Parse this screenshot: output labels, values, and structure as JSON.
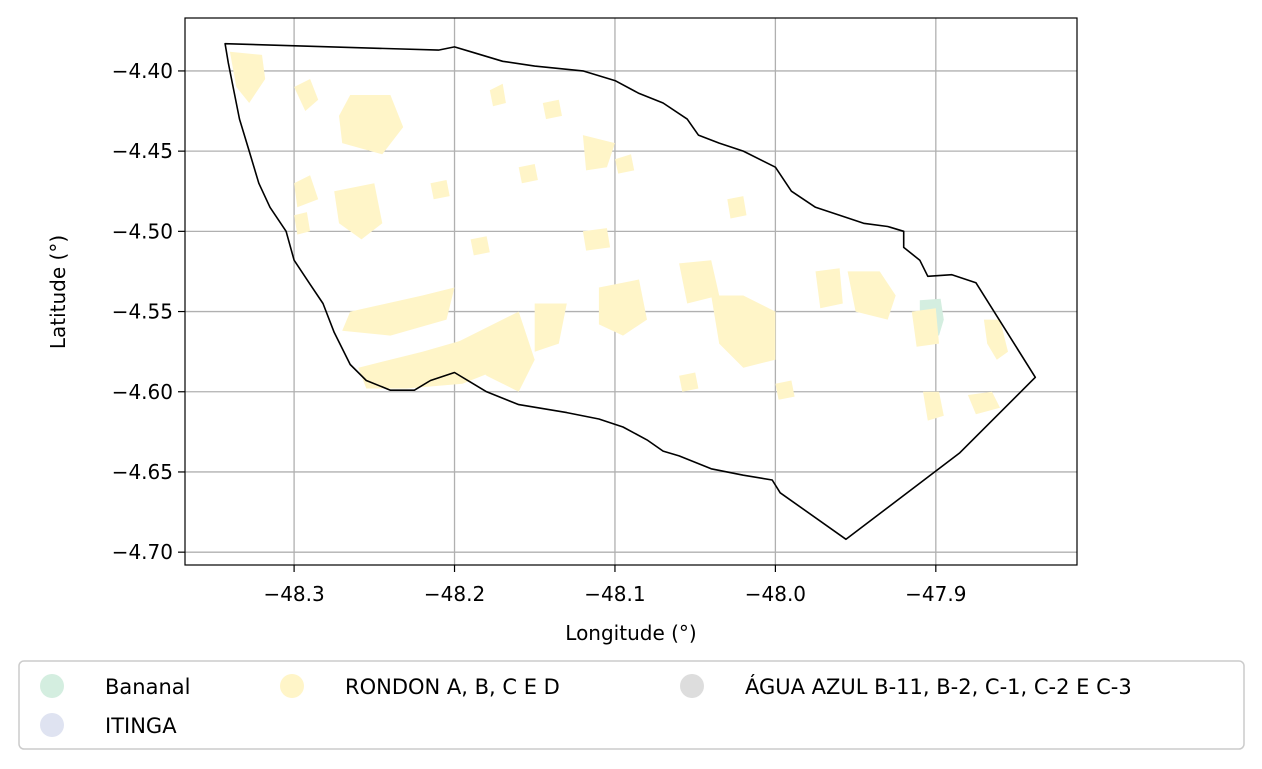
{
  "chart_data": {
    "type": "map",
    "title": "",
    "xlabel": "Longitude (°)",
    "ylabel": "Latitude (°)",
    "xlim": [
      -48.368,
      -47.812
    ],
    "ylim": [
      -4.708,
      -4.367
    ],
    "grid": true,
    "x_ticks": [
      {
        "value": -48.3,
        "label": "−48.3"
      },
      {
        "value": -48.2,
        "label": "−48.2"
      },
      {
        "value": -48.1,
        "label": "−48.1"
      },
      {
        "value": -48.0,
        "label": "−48.0"
      },
      {
        "value": -47.9,
        "label": "−47.9"
      }
    ],
    "y_ticks": [
      {
        "value": -4.4,
        "label": "−4.40"
      },
      {
        "value": -4.45,
        "label": "−4.45"
      },
      {
        "value": -4.5,
        "label": "−4.50"
      },
      {
        "value": -4.55,
        "label": "−4.55"
      },
      {
        "value": -4.6,
        "label": "−4.60"
      },
      {
        "value": -4.65,
        "label": "−4.65"
      },
      {
        "value": -4.7,
        "label": "−4.70"
      }
    ],
    "boundary": [
      [
        -48.343,
        -4.383
      ],
      [
        -48.21,
        -4.387
      ],
      [
        -48.2,
        -4.385
      ],
      [
        -48.19,
        -4.388
      ],
      [
        -48.17,
        -4.394
      ],
      [
        -48.15,
        -4.397
      ],
      [
        -48.12,
        -4.4
      ],
      [
        -48.1,
        -4.406
      ],
      [
        -48.085,
        -4.414
      ],
      [
        -48.07,
        -4.42
      ],
      [
        -48.055,
        -4.43
      ],
      [
        -48.048,
        -4.44
      ],
      [
        -48.035,
        -4.445
      ],
      [
        -48.02,
        -4.45
      ],
      [
        -48.0,
        -4.46
      ],
      [
        -47.99,
        -4.475
      ],
      [
        -47.975,
        -4.485
      ],
      [
        -47.96,
        -4.49
      ],
      [
        -47.945,
        -4.495
      ],
      [
        -47.93,
        -4.497
      ],
      [
        -47.92,
        -4.5
      ],
      [
        -47.92,
        -4.51
      ],
      [
        -47.91,
        -4.518
      ],
      [
        -47.905,
        -4.528
      ],
      [
        -47.89,
        -4.527
      ],
      [
        -47.875,
        -4.532
      ],
      [
        -47.838,
        -4.591
      ],
      [
        -47.885,
        -4.638
      ],
      [
        -47.956,
        -4.692
      ],
      [
        -47.997,
        -4.663
      ],
      [
        -48.002,
        -4.655
      ],
      [
        -48.02,
        -4.652
      ],
      [
        -48.04,
        -4.648
      ],
      [
        -48.06,
        -4.64
      ],
      [
        -48.07,
        -4.637
      ],
      [
        -48.08,
        -4.63
      ],
      [
        -48.095,
        -4.622
      ],
      [
        -48.11,
        -4.617
      ],
      [
        -48.13,
        -4.613
      ],
      [
        -48.16,
        -4.608
      ],
      [
        -48.18,
        -4.6
      ],
      [
        -48.2,
        -4.588
      ],
      [
        -48.215,
        -4.593
      ],
      [
        -48.225,
        -4.599
      ],
      [
        -48.24,
        -4.599
      ],
      [
        -48.255,
        -4.593
      ],
      [
        -48.265,
        -4.583
      ],
      [
        -48.275,
        -4.563
      ],
      [
        -48.282,
        -4.545
      ],
      [
        -48.29,
        -4.533
      ],
      [
        -48.3,
        -4.518
      ],
      [
        -48.305,
        -4.5
      ],
      [
        -48.315,
        -4.485
      ],
      [
        -48.322,
        -4.47
      ],
      [
        -48.328,
        -4.45
      ],
      [
        -48.334,
        -4.43
      ],
      [
        -48.338,
        -4.41
      ],
      [
        -48.341,
        -4.395
      ]
    ],
    "series": [
      {
        "name": "Bananal",
        "color": "#d4eee0",
        "polygons": [
          [
            [
              -47.91,
              -4.543
            ],
            [
              -47.897,
              -4.542
            ],
            [
              -47.895,
              -4.555
            ],
            [
              -47.898,
              -4.565
            ],
            [
              -47.905,
              -4.563
            ],
            [
              -47.91,
              -4.555
            ]
          ]
        ]
      },
      {
        "name": "ITINGA",
        "color": "#dfe3f1",
        "polygons": []
      },
      {
        "name": "RONDON A, B, C E D",
        "color": "#fff5c8",
        "polygons": [
          [
            [
              -48.34,
              -4.388
            ],
            [
              -48.32,
              -4.39
            ],
            [
              -48.318,
              -4.405
            ],
            [
              -48.328,
              -4.42
            ],
            [
              -48.336,
              -4.41
            ]
          ],
          [
            [
              -48.3,
              -4.41
            ],
            [
              -48.29,
              -4.405
            ],
            [
              -48.285,
              -4.418
            ],
            [
              -48.293,
              -4.425
            ]
          ],
          [
            [
              -48.265,
              -4.415
            ],
            [
              -48.24,
              -4.415
            ],
            [
              -48.232,
              -4.435
            ],
            [
              -48.245,
              -4.452
            ],
            [
              -48.27,
              -4.445
            ],
            [
              -48.272,
              -4.428
            ]
          ],
          [
            [
              -48.3,
              -4.47
            ],
            [
              -48.29,
              -4.465
            ],
            [
              -48.285,
              -4.48
            ],
            [
              -48.298,
              -4.485
            ]
          ],
          [
            [
              -48.275,
              -4.475
            ],
            [
              -48.25,
              -4.47
            ],
            [
              -48.245,
              -4.495
            ],
            [
              -48.258,
              -4.505
            ],
            [
              -48.272,
              -4.495
            ]
          ],
          [
            [
              -48.3,
              -4.49
            ],
            [
              -48.292,
              -4.488
            ],
            [
              -48.29,
              -4.5
            ],
            [
              -48.298,
              -4.502
            ]
          ],
          [
            [
              -48.265,
              -4.55
            ],
            [
              -48.22,
              -4.54
            ],
            [
              -48.2,
              -4.535
            ],
            [
              -48.205,
              -4.555
            ],
            [
              -48.24,
              -4.565
            ],
            [
              -48.27,
              -4.562
            ]
          ],
          [
            [
              -48.26,
              -4.585
            ],
            [
              -48.22,
              -4.575
            ],
            [
              -48.185,
              -4.565
            ],
            [
              -48.17,
              -4.585
            ],
            [
              -48.195,
              -4.595
            ],
            [
              -48.23,
              -4.598
            ],
            [
              -48.255,
              -4.598
            ]
          ],
          [
            [
              -48.2,
              -4.57
            ],
            [
              -48.16,
              -4.55
            ],
            [
              -48.15,
              -4.58
            ],
            [
              -48.16,
              -4.6
            ],
            [
              -48.18,
              -4.59
            ]
          ],
          [
            [
              -48.15,
              -4.545
            ],
            [
              -48.13,
              -4.545
            ],
            [
              -48.135,
              -4.57
            ],
            [
              -48.15,
              -4.575
            ]
          ],
          [
            [
              -48.178,
              -4.412
            ],
            [
              -48.17,
              -4.408
            ],
            [
              -48.168,
              -4.42
            ],
            [
              -48.176,
              -4.422
            ]
          ],
          [
            [
              -48.145,
              -4.42
            ],
            [
              -48.135,
              -4.418
            ],
            [
              -48.133,
              -4.428
            ],
            [
              -48.143,
              -4.43
            ]
          ],
          [
            [
              -48.12,
              -4.5
            ],
            [
              -48.105,
              -4.498
            ],
            [
              -48.103,
              -4.51
            ],
            [
              -48.118,
              -4.512
            ]
          ],
          [
            [
              -48.11,
              -4.535
            ],
            [
              -48.085,
              -4.53
            ],
            [
              -48.08,
              -4.555
            ],
            [
              -48.095,
              -4.565
            ],
            [
              -48.11,
              -4.558
            ]
          ],
          [
            [
              -48.06,
              -4.52
            ],
            [
              -48.04,
              -4.518
            ],
            [
              -48.035,
              -4.54
            ],
            [
              -48.055,
              -4.545
            ]
          ],
          [
            [
              -48.03,
              -4.48
            ],
            [
              -48.02,
              -4.478
            ],
            [
              -48.018,
              -4.49
            ],
            [
              -48.028,
              -4.492
            ]
          ],
          [
            [
              -48.04,
              -4.54
            ],
            [
              -48.02,
              -4.54
            ],
            [
              -48.0,
              -4.55
            ],
            [
              -48.0,
              -4.58
            ],
            [
              -48.02,
              -4.585
            ],
            [
              -48.035,
              -4.57
            ]
          ],
          [
            [
              -48.12,
              -4.44
            ],
            [
              -48.1,
              -4.445
            ],
            [
              -48.105,
              -4.46
            ],
            [
              -48.118,
              -4.462
            ]
          ],
          [
            [
              -48.1,
              -4.455
            ],
            [
              -48.09,
              -4.452
            ],
            [
              -48.088,
              -4.462
            ],
            [
              -48.098,
              -4.464
            ]
          ],
          [
            [
              -47.975,
              -4.525
            ],
            [
              -47.96,
              -4.523
            ],
            [
              -47.958,
              -4.545
            ],
            [
              -47.972,
              -4.548
            ]
          ],
          [
            [
              -47.955,
              -4.525
            ],
            [
              -47.935,
              -4.525
            ],
            [
              -47.925,
              -4.54
            ],
            [
              -47.93,
              -4.555
            ],
            [
              -47.95,
              -4.55
            ]
          ],
          [
            [
              -47.915,
              -4.55
            ],
            [
              -47.9,
              -4.548
            ],
            [
              -47.898,
              -4.57
            ],
            [
              -47.912,
              -4.572
            ]
          ],
          [
            [
              -47.908,
              -4.6
            ],
            [
              -47.898,
              -4.6
            ],
            [
              -47.895,
              -4.615
            ],
            [
              -47.905,
              -4.618
            ]
          ],
          [
            [
              -47.87,
              -4.555
            ],
            [
              -47.86,
              -4.555
            ],
            [
              -47.855,
              -4.575
            ],
            [
              -47.862,
              -4.58
            ],
            [
              -47.868,
              -4.57
            ]
          ],
          [
            [
              -47.88,
              -4.602
            ],
            [
              -47.865,
              -4.6
            ],
            [
              -47.86,
              -4.61
            ],
            [
              -47.875,
              -4.614
            ]
          ],
          [
            [
              -48.06,
              -4.59
            ],
            [
              -48.05,
              -4.588
            ],
            [
              -48.048,
              -4.598
            ],
            [
              -48.058,
              -4.6
            ]
          ],
          [
            [
              -48.0,
              -4.595
            ],
            [
              -47.99,
              -4.593
            ],
            [
              -47.988,
              -4.603
            ],
            [
              -47.998,
              -4.605
            ]
          ],
          [
            [
              -48.215,
              -4.47
            ],
            [
              -48.205,
              -4.468
            ],
            [
              -48.203,
              -4.478
            ],
            [
              -48.213,
              -4.48
            ]
          ],
          [
            [
              -48.19,
              -4.505
            ],
            [
              -48.18,
              -4.503
            ],
            [
              -48.178,
              -4.513
            ],
            [
              -48.188,
              -4.515
            ]
          ],
          [
            [
              -48.16,
              -4.46
            ],
            [
              -48.15,
              -4.458
            ],
            [
              -48.148,
              -4.468
            ],
            [
              -48.158,
              -4.47
            ]
          ]
        ]
      },
      {
        "name": "ÁGUA AZUL B-11, B-2, C-1, C-2 E C-3",
        "color": "#dddddd",
        "polygons": []
      }
    ]
  },
  "legend": {
    "placement": "bottom",
    "entries": [
      {
        "label": "Bananal",
        "color": "#d4eee0"
      },
      {
        "label": "ITINGA",
        "color": "#dfe3f1"
      },
      {
        "label": "RONDON A, B, C E D",
        "color": "#fff5c8"
      },
      {
        "label": "ÁGUA AZUL B-11, B-2, C-1, C-2 E C-3",
        "color": "#dddddd"
      }
    ]
  },
  "colors": {
    "grid": "#b0b0b0",
    "boundary": "#000000",
    "axes": "#000000"
  }
}
